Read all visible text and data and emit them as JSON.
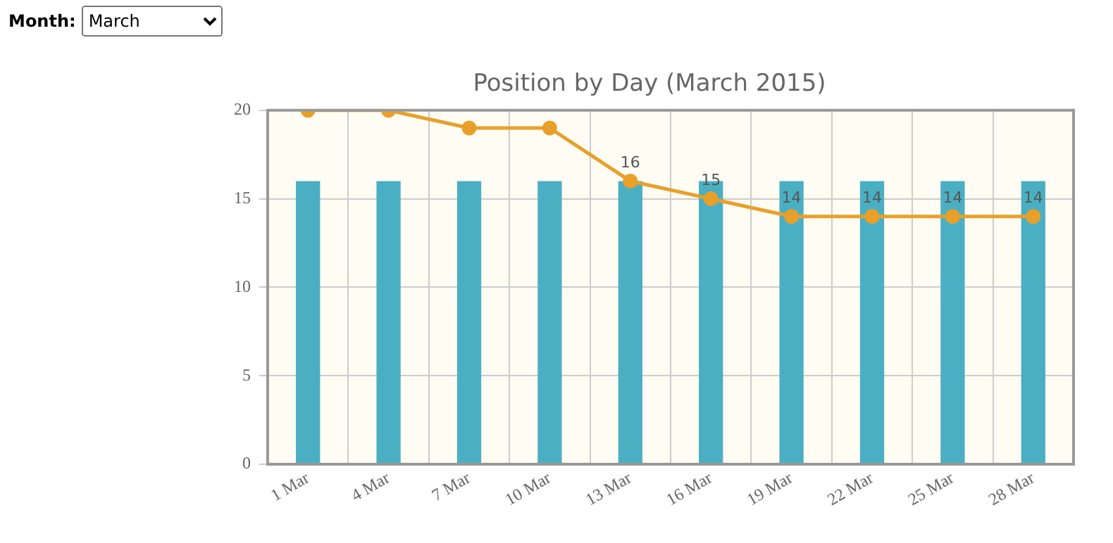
{
  "chart_data": {
    "type": "bar",
    "title": "Position by Day (March 2015)",
    "annotations": [
      "Month:",
      "March"
    ],
    "categories": [
      "1 Mar",
      "4 Mar",
      "7 Mar",
      "10 Mar",
      "13 Mar",
      "16 Mar",
      "19 Mar",
      "22 Mar",
      "25 Mar",
      "28 Mar"
    ],
    "series": [
      {
        "color": "#4bafc4",
        "values": [
          16,
          16,
          16,
          16,
          16,
          16,
          16,
          16,
          16,
          16
        ]
      },
      {
        "type": "line",
        "color": "#e8a02a",
        "values": [
          20,
          20,
          19,
          19,
          16,
          15,
          14,
          14,
          14,
          14
        ],
        "value_labels": [
          null,
          null,
          null,
          null,
          "16",
          "15",
          "14",
          "14",
          "14",
          "14"
        ]
      }
    ],
    "ylim": [
      0,
      20
    ],
    "yticks": [
      0,
      5,
      10,
      15,
      20
    ],
    "grid": true,
    "legend": false,
    "marker": "circle",
    "line_style": "solid"
  }
}
